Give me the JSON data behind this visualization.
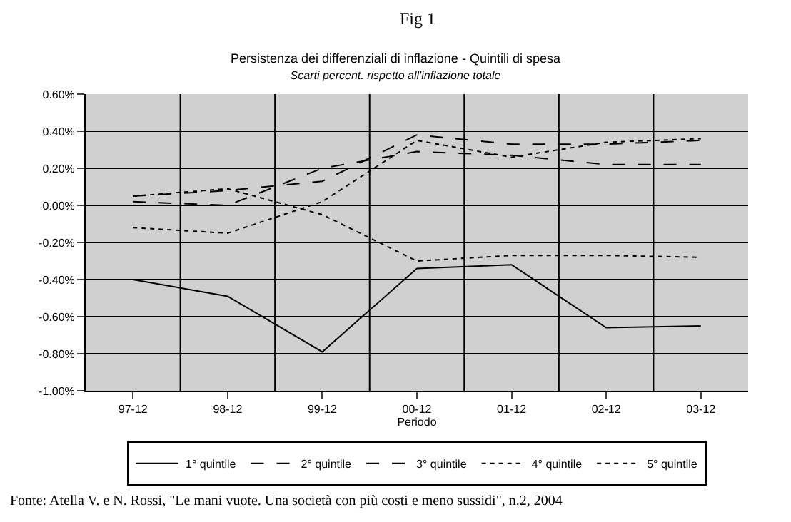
{
  "chart_data": {
    "type": "line",
    "title": "Persistenza dei differenziali di inflazione - Quintili di spesa",
    "subtitle": "Scarti percent. rispetto all'inflazione totale",
    "xlabel": "Periodo",
    "categories": [
      "97-12",
      "98-12",
      "99-12",
      "00-12",
      "01-12",
      "02-12",
      "03-12"
    ],
    "series": [
      {
        "name": "1° quintile",
        "color": "#000000",
        "line_style": "solid",
        "values": [
          -0.4,
          -0.49,
          -0.79,
          -0.34,
          -0.32,
          -0.66,
          -0.65
        ]
      },
      {
        "name": "2° quintile",
        "color": "#000000",
        "line_style": "dashed",
        "values": [
          0.05,
          0.08,
          0.13,
          0.38,
          0.33,
          0.33,
          0.35
        ]
      },
      {
        "name": "3° quintile",
        "color": "#000000",
        "line_style": "dashed",
        "values": [
          0.02,
          0.0,
          0.2,
          0.29,
          0.27,
          0.22,
          0.22
        ]
      },
      {
        "name": "4° quintile",
        "color": "#000000",
        "line_style": "dotted",
        "values": [
          -0.12,
          -0.15,
          0.02,
          0.35,
          0.26,
          0.34,
          0.36
        ]
      },
      {
        "name": "5° quintile",
        "color": "#000000",
        "line_style": "dotted",
        "values": [
          0.05,
          0.09,
          -0.05,
          -0.3,
          -0.27,
          -0.27,
          -0.28
        ]
      }
    ],
    "ylim": [
      -1.0,
      0.6
    ],
    "yticks": [
      {
        "value": -1.0,
        "label": "-1.00%"
      },
      {
        "value": -0.8,
        "label": "-0.80%"
      },
      {
        "value": -0.6,
        "label": "-0.60%"
      },
      {
        "value": -0.4,
        "label": "-0.40%"
      },
      {
        "value": -0.2,
        "label": "-0.20%"
      },
      {
        "value": 0,
        "label": "0.00%"
      },
      {
        "value": 0.2,
        "label": "0.20%"
      },
      {
        "value": 0.4,
        "label": "0.40%"
      },
      {
        "value": 0.6,
        "label": "0.60%"
      }
    ],
    "grid": true,
    "legend": "bottom",
    "marker": "none",
    "annotations": [
      "Fig 1",
      "Fonte: Atella V. e N. Rossi, \"Le mani vuote. Una società con più costi e meno sussidi\", n.2, 2004"
    ]
  }
}
